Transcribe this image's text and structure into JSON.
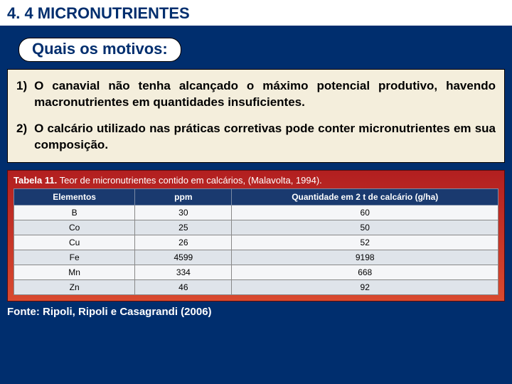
{
  "section_title": "4. 4 MICRONUTRIENTES",
  "subtitle": "Quais os motivos:",
  "reasons": [
    {
      "num": "1)",
      "text": "O canavial não tenha alcançado o máximo potencial produtivo, havendo macronutrientes em quantidades insuficientes."
    },
    {
      "num": "2)",
      "text": "O calcário utilizado nas práticas corretivas pode conter micronutrientes em sua composição."
    }
  ],
  "table": {
    "caption_bold": "Tabela 11.",
    "caption_rest": " Teor de micronutrientes contido em calcários, (Malavolta, 1994).",
    "columns": [
      "Elementos",
      "ppm",
      "Quantidade em 2 t de calcário (g/ha)"
    ],
    "col_widths": [
      "25%",
      "20%",
      "55%"
    ],
    "rows": [
      [
        "B",
        "30",
        "60"
      ],
      [
        "Co",
        "25",
        "50"
      ],
      [
        "Cu",
        "26",
        "52"
      ],
      [
        "Fe",
        "4599",
        "9198"
      ],
      [
        "Mn",
        "334",
        "668"
      ],
      [
        "Zn",
        "46",
        "92"
      ]
    ]
  },
  "source": "Fonte: Ripoli, Ripoli e Casagrandi (2006)",
  "colors": {
    "page_bg": "#002e6e",
    "box_bg": "#f4eedc",
    "table_header_bg": "#1a3a6f",
    "caption_grad_top": "#b21f20",
    "caption_grad_bottom": "#d94a2f"
  }
}
